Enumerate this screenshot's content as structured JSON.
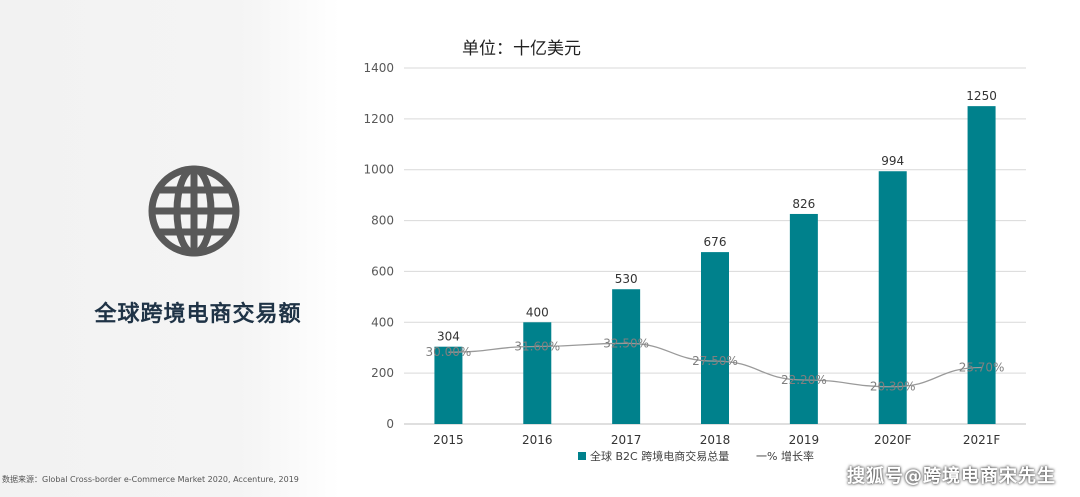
{
  "heading": "全球跨境电商交易额",
  "unit": "单位：十亿美元",
  "source": "数据来源：Global Cross-border e-Commerce Market 2020, Accenture,  2019",
  "watermark": "搜狐号@跨境电商宋先生",
  "icons": {
    "globe": "globe-icon"
  },
  "colors": {
    "bar": "#00818c",
    "line": "#9a9a9a",
    "heading": "#1f3346"
  },
  "chart_data": {
    "type": "bar",
    "categories": [
      "2015",
      "2016",
      "2017",
      "2018",
      "2019",
      "2020F",
      "2021F"
    ],
    "series": [
      {
        "name": "全球 B2C 跨境电商交易总量",
        "type": "bar",
        "values": [
          304,
          400,
          530,
          676,
          826,
          994,
          1250
        ]
      },
      {
        "name": "一% 增长率",
        "type": "line",
        "values": [
          30.0,
          31.6,
          32.5,
          27.5,
          22.2,
          20.3,
          25.7
        ]
      }
    ],
    "value_labels": [
      "304",
      "400",
      "530",
      "676",
      "826",
      "994",
      "1250"
    ],
    "growth_labels": [
      "30.00%",
      "31.60%",
      "32.50%",
      "27.50%",
      "22.20%",
      "20.30%",
      "25.70%"
    ],
    "yticks": [
      "0",
      "200",
      "400",
      "600",
      "800",
      "1000",
      "1200",
      "1400"
    ],
    "ylim": [
      0,
      1400
    ],
    "grid": true,
    "legend": "bottom"
  }
}
